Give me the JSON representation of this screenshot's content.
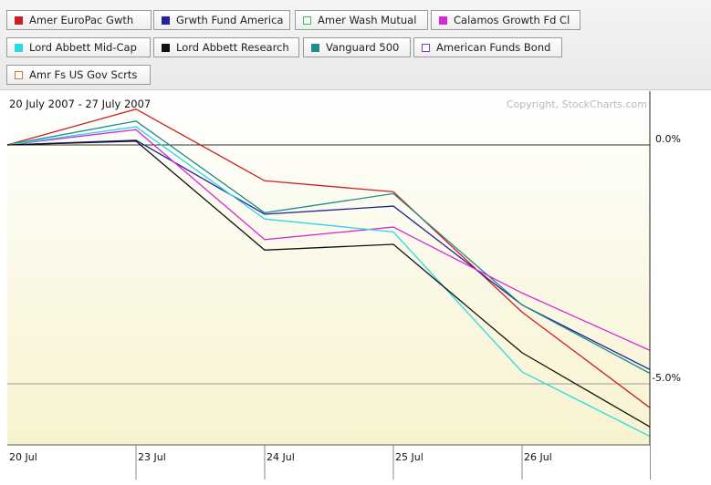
{
  "legend": [
    {
      "label": "Amer EuroPac Gwth",
      "color": "#cc1f1f",
      "style": "filled"
    },
    {
      "label": "Grwth Fund America",
      "color": "#22229a",
      "style": "filled"
    },
    {
      "label": "Amer Wash Mutual",
      "color": "#3cc43c",
      "style": "outline"
    },
    {
      "label": "Calamos Growth Fd Cl",
      "color": "#d62ad6",
      "style": "filled"
    },
    {
      "label": "Lord Abbett Mid-Cap",
      "color": "#2ad8e4",
      "style": "filled"
    },
    {
      "label": "Lord Abbett Research",
      "color": "#111111",
      "style": "filled"
    },
    {
      "label": "Vanguard 500",
      "color": "#1e8c8c",
      "style": "filled"
    },
    {
      "label": "American Funds Bond",
      "color": "#7a3cc8",
      "style": "outline"
    },
    {
      "label": "Amr Fs US Gov Scrts",
      "color": "#c8783c",
      "style": "outline"
    }
  ],
  "chart_data": {
    "type": "line",
    "title": "20 July 2007 - 27 July 2007",
    "copyright": "Copyright, StockCharts.com",
    "categories": [
      "20 Jul",
      "23 Jul",
      "24 Jul",
      "25 Jul",
      "26 Jul",
      "27 Jul"
    ],
    "y_axis_labels": [
      {
        "label": "0.0%",
        "value": 0
      },
      {
        "label": "-5.0%",
        "value": -5
      }
    ],
    "ylim": [
      -6.2,
      1.1
    ],
    "grid": "horizontal lines at 0% and -5%; vertical lines at each date",
    "series": [
      {
        "name": "Amer EuroPac Gwth",
        "color": "#cc1f1f",
        "values": [
          0,
          0.75,
          -0.75,
          -0.98,
          -3.5,
          -5.5
        ]
      },
      {
        "name": "Grwth Fund America",
        "color": "#22229a",
        "values": [
          0,
          0.1,
          -1.45,
          -1.28,
          -3.35,
          -4.7
        ]
      },
      {
        "name": "Vanguard 500",
        "color": "#1e8c8c",
        "values": [
          0,
          0.5,
          -1.42,
          -1.02,
          -3.35,
          -4.78
        ]
      },
      {
        "name": "Calamos Growth Fd Cl",
        "color": "#d62ad6",
        "values": [
          0,
          0.32,
          -1.98,
          -1.72,
          -3.1,
          -4.3
        ]
      },
      {
        "name": "Lord Abbett Mid-Cap",
        "color": "#2ad8e4",
        "values": [
          0,
          0.38,
          -1.55,
          -1.82,
          -4.75,
          -6.1
        ]
      },
      {
        "name": "Lord Abbett Research",
        "color": "#111111",
        "values": [
          0,
          0.08,
          -2.2,
          -2.08,
          -4.35,
          -5.9
        ]
      }
    ]
  }
}
